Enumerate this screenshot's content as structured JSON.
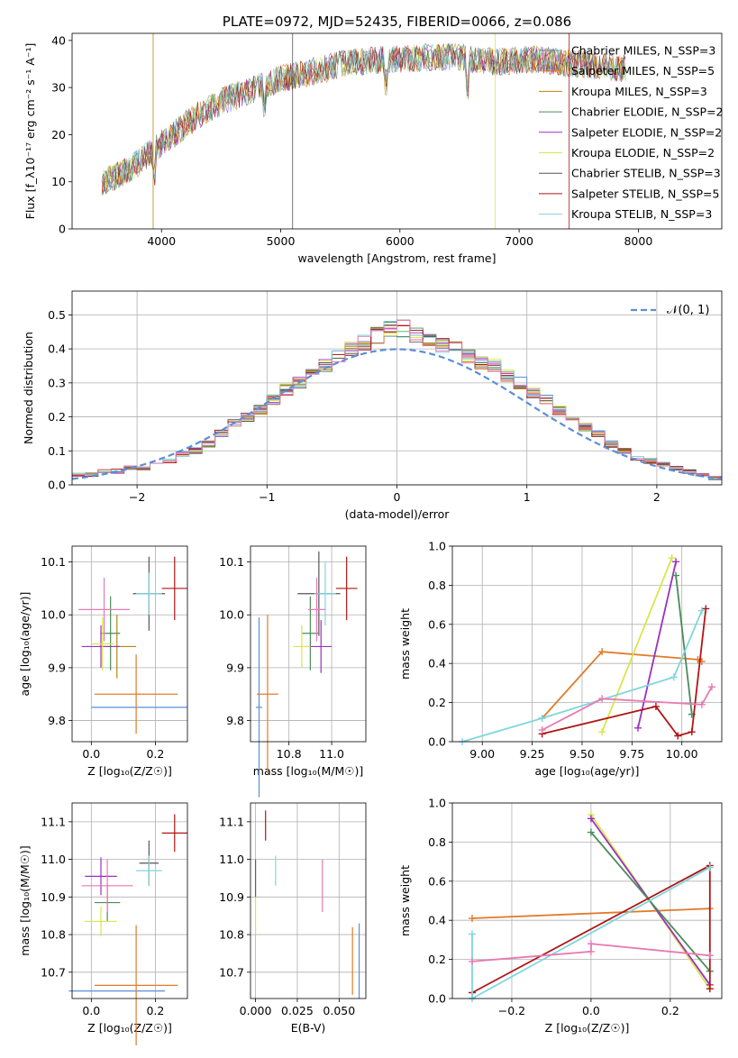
{
  "colors": {
    "Chabrier MILES": "#5b8fd6",
    "Salpeter MILES": "#e07b2a",
    "Kroupa MILES": "#b8860b",
    "Chabrier ELODIE": "#4c8c5a",
    "Salpeter ELODIE": "#9b30c0",
    "Kroupa ELODIE": "#d9e64a",
    "Chabrier STELIB": "#555555",
    "Salpeter STELIB": "#b01515",
    "Kroupa STELIB": "#7fd6dd",
    "pink": "#e87ab2",
    "gauss": "#5b8fd6"
  },
  "chart_data": [
    {
      "type": "line",
      "title": "PLATE=0972, MJD=52435, FIBERID=0066, z=0.086",
      "xlabel": "wavelength [Angstrom, rest frame]",
      "ylabel": "Flux [f_λ10⁻¹⁷ erg cm⁻² s⁻¹ A⁻¹]",
      "xlim": [
        3250,
        8700
      ],
      "ylim": [
        0,
        41.5
      ],
      "xticks": [
        "4000",
        "5000",
        "6000",
        "7000",
        "8000"
      ],
      "yticks": [
        "0",
        "10",
        "20",
        "30",
        "40"
      ],
      "legend_position": "right",
      "series": [
        {
          "name": "Chabrier MILES, N_SSP=3"
        },
        {
          "name": "Salpeter MILES, N_SSP=5"
        },
        {
          "name": "Kroupa MILES, N_SSP=3"
        },
        {
          "name": "Chabrier ELODIE, N_SSP=2"
        },
        {
          "name": "Salpeter ELODIE, N_SSP=2"
        },
        {
          "name": "Kroupa ELODIE, N_SSP=2"
        },
        {
          "name": "Chabrier STELIB, N_SSP=3"
        },
        {
          "name": "Salpeter STELIB, N_SSP=5"
        },
        {
          "name": "Kroupa STELIB, N_SSP=3"
        }
      ],
      "continuum": {
        "x": [
          3500,
          3700,
          3900,
          4100,
          4300,
          4500,
          4700,
          4900,
          5100,
          5300,
          5500,
          5700,
          5900,
          6100,
          6300,
          6500,
          6700,
          6900,
          7100,
          7300,
          7500,
          7700,
          7900
        ],
        "y": [
          10,
          12,
          16,
          20,
          24,
          27,
          29,
          31,
          32.5,
          33.5,
          35,
          35.5,
          36,
          36.2,
          36.5,
          36.5,
          35.5,
          35.5,
          36,
          35.5,
          35,
          34.5,
          34
        ]
      }
    },
    {
      "type": "step",
      "xlabel": "(data-model)/error",
      "ylabel": "Normed distribution",
      "xlim": [
        -2.5,
        2.5
      ],
      "ylim": [
        0,
        0.57
      ],
      "xticks": [
        "−2",
        "−1",
        "0",
        "1",
        "2"
      ],
      "yticks": [
        "0.0",
        "0.1",
        "0.2",
        "0.3",
        "0.4",
        "0.5"
      ],
      "legend": "𝒩(0, 1)",
      "bin_edges_from": -2.5,
      "bin_width": 0.1,
      "histogram_shape": [
        0.03,
        0.03,
        0.04,
        0.04,
        0.05,
        0.05,
        0.06,
        0.07,
        0.09,
        0.1,
        0.12,
        0.15,
        0.18,
        0.2,
        0.22,
        0.25,
        0.28,
        0.3,
        0.33,
        0.35,
        0.38,
        0.4,
        0.42,
        0.44,
        0.46,
        0.46,
        0.44,
        0.42,
        0.41,
        0.4,
        0.38,
        0.36,
        0.35,
        0.32,
        0.3,
        0.27,
        0.25,
        0.22,
        0.2,
        0.17,
        0.15,
        0.12,
        0.1,
        0.08,
        0.07,
        0.06,
        0.05,
        0.04,
        0.03,
        0.02
      ]
    },
    {
      "type": "errorbar",
      "xlabel": "Z [log₁₀(Z/Z☉)]",
      "ylabel": "age  [log₁₀(age/yr)]",
      "xlim": [
        -0.06,
        0.3
      ],
      "ylim": [
        9.76,
        10.13
      ],
      "xticks": [
        "0.0",
        "0.2"
      ],
      "yticks": [
        "9.8",
        "9.9",
        "10.0",
        "10.1"
      ],
      "points": [
        {
          "x": 0.15,
          "y": 9.825,
          "xerr": 0.15,
          "yerr": 0.0,
          "c": "Chabrier MILES"
        },
        {
          "x": 0.14,
          "y": 9.85,
          "xerr": 0.13,
          "yerr": 0.075,
          "c": "Salpeter MILES"
        },
        {
          "x": 0.08,
          "y": 9.94,
          "xerr": 0.06,
          "yerr": 0.06,
          "c": "Kroupa MILES"
        },
        {
          "x": 0.06,
          "y": 9.965,
          "xerr": 0.03,
          "yerr": 0.07,
          "c": "Chabrier ELODIE"
        },
        {
          "x": 0.03,
          "y": 9.94,
          "xerr": 0.06,
          "yerr": 0.04,
          "c": "Salpeter ELODIE"
        },
        {
          "x": 0.035,
          "y": 9.945,
          "xerr": 0.035,
          "yerr": 0.05,
          "c": "Kroupa ELODIE"
        },
        {
          "x": 0.18,
          "y": 10.04,
          "xerr": 0.05,
          "yerr": 0.07,
          "c": "Chabrier STELIB"
        },
        {
          "x": 0.26,
          "y": 10.05,
          "xerr": 0.04,
          "yerr": 0.06,
          "c": "Salpeter STELIB"
        },
        {
          "x": 0.18,
          "y": 10.04,
          "xerr": 0.04,
          "yerr": 0.04,
          "c": "Kroupa STELIB"
        },
        {
          "x": 0.04,
          "y": 10.01,
          "xerr": 0.08,
          "yerr": 0.06,
          "c": "pink"
        }
      ]
    },
    {
      "type": "errorbar",
      "xlabel": "mass [log₁₀(M/M☉)]",
      "xlim": [
        10.62,
        11.16
      ],
      "ylim": [
        9.76,
        10.13
      ],
      "xticks": [
        "10.8",
        "11.0"
      ],
      "yticks": [
        "9.8",
        "9.9",
        "10.0",
        "10.1"
      ],
      "points": [
        {
          "x": 10.66,
          "y": 9.825,
          "xerr": 0.015,
          "yerr": 0.17,
          "c": "Chabrier MILES"
        },
        {
          "x": 10.7,
          "y": 9.85,
          "xerr": 0.05,
          "yerr": 0.15,
          "c": "Salpeter MILES"
        },
        {
          "x": 10.94,
          "y": 10.04,
          "xerr": 0.1,
          "yerr": 0.08,
          "c": "Chabrier STELIB"
        },
        {
          "x": 11.07,
          "y": 10.05,
          "xerr": 0.05,
          "yerr": 0.06,
          "c": "Salpeter STELIB"
        },
        {
          "x": 10.97,
          "y": 10.04,
          "xerr": 0.05,
          "yerr": 0.06,
          "c": "Kroupa STELIB"
        },
        {
          "x": 10.9,
          "y": 9.965,
          "xerr": 0.04,
          "yerr": 0.07,
          "c": "Chabrier ELODIE"
        },
        {
          "x": 10.95,
          "y": 9.94,
          "xerr": 0.05,
          "yerr": 0.05,
          "c": "Salpeter ELODIE"
        },
        {
          "x": 10.86,
          "y": 9.94,
          "xerr": 0.04,
          "yerr": 0.04,
          "c": "Kroupa ELODIE"
        },
        {
          "x": 10.93,
          "y": 10.01,
          "xerr": 0.04,
          "yerr": 0.06,
          "c": "pink"
        }
      ]
    },
    {
      "type": "line",
      "xlabel": "age  [log₁₀(age/yr)]",
      "ylabel": "mass weight",
      "xlim": [
        8.85,
        10.2
      ],
      "ylim": [
        0,
        1
      ],
      "xticks": [
        "9.00",
        "9.25",
        "9.50",
        "9.75",
        "10.00"
      ],
      "yticks": [
        "0.0",
        "0.2",
        "0.4",
        "0.6",
        "0.8",
        "1.0"
      ],
      "series": [
        {
          "c": "Salpeter MILES",
          "x": [
            9.3,
            9.6,
            10.08,
            10.1
          ],
          "y": [
            0.12,
            0.46,
            0.42,
            0.41
          ]
        },
        {
          "c": "Kroupa ELODIE",
          "x": [
            9.6,
            9.95
          ],
          "y": [
            0.05,
            0.94
          ]
        },
        {
          "c": "Salpeter ELODIE",
          "x": [
            9.78,
            9.97
          ],
          "y": [
            0.07,
            0.92
          ]
        },
        {
          "c": "Chabrier ELODIE",
          "x": [
            9.97,
            10.05
          ],
          "y": [
            0.85,
            0.14
          ]
        },
        {
          "c": "Salpeter STELIB",
          "x": [
            9.3,
            9.87,
            9.98,
            10.05,
            10.12
          ],
          "y": [
            0.04,
            0.18,
            0.03,
            0.05,
            0.68
          ]
        },
        {
          "c": "Kroupa STELIB",
          "x": [
            8.9,
            9.3,
            9.96,
            10.1
          ],
          "y": [
            0.0,
            0.12,
            0.33,
            0.67
          ]
        },
        {
          "c": "pink",
          "x": [
            9.3,
            9.6,
            10.1,
            10.15
          ],
          "y": [
            0.06,
            0.22,
            0.19,
            0.28
          ]
        }
      ]
    },
    {
      "type": "errorbar",
      "xlabel": "Z [log₁₀(Z/Z☉)]",
      "ylabel": "mass [log₁₀(M/M☉)]",
      "xlim": [
        -0.06,
        0.3
      ],
      "ylim": [
        10.63,
        11.15
      ],
      "xticks": [
        "0.0",
        "0.2"
      ],
      "yticks": [
        "10.7",
        "10.8",
        "10.9",
        "11.0",
        "11.1"
      ],
      "points": [
        {
          "x": 0.08,
          "y": 10.65,
          "xerr": 0.15,
          "yerr": 0.0,
          "c": "Chabrier MILES"
        },
        {
          "x": 0.14,
          "y": 10.665,
          "xerr": 0.13,
          "yerr": 0.16,
          "c": "Salpeter MILES"
        },
        {
          "x": 0.05,
          "y": 10.885,
          "xerr": 0.04,
          "yerr": 0.05,
          "c": "Chabrier ELODIE"
        },
        {
          "x": 0.03,
          "y": 10.955,
          "xerr": 0.05,
          "yerr": 0.05,
          "c": "Salpeter ELODIE"
        },
        {
          "x": 0.03,
          "y": 10.835,
          "xerr": 0.05,
          "yerr": 0.04,
          "c": "Kroupa ELODIE"
        },
        {
          "x": 0.18,
          "y": 10.99,
          "xerr": 0.03,
          "yerr": 0.06,
          "c": "Chabrier STELIB"
        },
        {
          "x": 0.26,
          "y": 11.07,
          "xerr": 0.04,
          "yerr": 0.05,
          "c": "Salpeter STELIB"
        },
        {
          "x": 0.18,
          "y": 10.97,
          "xerr": 0.04,
          "yerr": 0.04,
          "c": "Kroupa STELIB"
        },
        {
          "x": 0.05,
          "y": 10.93,
          "xerr": 0.08,
          "yerr": 0.07,
          "c": "pink"
        }
      ]
    },
    {
      "type": "errorbar",
      "xlabel": "E(B-V)",
      "xlim": [
        -0.003,
        0.066
      ],
      "ylim": [
        10.63,
        11.15
      ],
      "xticks": [
        "0.000",
        "0.025",
        "0.050"
      ],
      "yticks": [
        "10.7",
        "10.8",
        "10.9",
        "11.0",
        "11.1"
      ],
      "points": [
        {
          "x": 0.0,
          "y": 10.9,
          "xerr": 0,
          "yerr": 0.1,
          "c": "Kroupa ELODIE"
        },
        {
          "x": 0.0,
          "y": 10.95,
          "xerr": 0,
          "yerr": 0.05,
          "c": "Salpeter ELODIE"
        },
        {
          "x": 0.006,
          "y": 11.09,
          "xerr": 0,
          "yerr": 0.04,
          "c": "Salpeter STELIB"
        },
        {
          "x": 0.012,
          "y": 10.97,
          "xerr": 0,
          "yerr": 0.04,
          "c": "Kroupa STELIB"
        },
        {
          "x": 0.04,
          "y": 10.93,
          "xerr": 0,
          "yerr": 0.07,
          "c": "pink"
        },
        {
          "x": 0.058,
          "y": 10.73,
          "xerr": 0,
          "yerr": 0.09,
          "c": "Salpeter MILES"
        },
        {
          "x": 0.062,
          "y": 10.73,
          "xerr": 0,
          "yerr": 0.1,
          "c": "Chabrier MILES"
        }
      ]
    },
    {
      "type": "line",
      "xlabel": "Z [log₁₀(Z/Z☉)]",
      "ylabel": "mass weight",
      "xlim": [
        -0.35,
        0.33
      ],
      "ylim": [
        0,
        1
      ],
      "xticks": [
        "−0.2",
        "0.0",
        "0.2"
      ],
      "yticks": [
        "0.0",
        "0.2",
        "0.4",
        "0.6",
        "0.8",
        "1.0"
      ],
      "series": [
        {
          "c": "Salpeter MILES",
          "x": [
            -0.3,
            0.3
          ],
          "y": [
            0.41,
            0.46
          ]
        },
        {
          "c": "Kroupa ELODIE",
          "x": [
            0.0,
            0.3
          ],
          "y": [
            0.94,
            0.05
          ]
        },
        {
          "c": "Salpeter ELODIE",
          "x": [
            0.0,
            0.3
          ],
          "y": [
            0.92,
            0.07
          ]
        },
        {
          "c": "Chabrier ELODIE",
          "x": [
            0.0,
            0.3
          ],
          "y": [
            0.85,
            0.14
          ]
        },
        {
          "c": "Salpeter STELIB",
          "x": [
            -0.3,
            0.3,
            0.3
          ],
          "y": [
            0.03,
            0.68,
            0.05
          ]
        },
        {
          "c": "Kroupa STELIB",
          "x": [
            -0.3,
            0.3
          ],
          "y": [
            0.0,
            0.67
          ]
        },
        {
          "c": "Kroupa STELIB",
          "x": [
            -0.3,
            -0.3
          ],
          "y": [
            0.0,
            0.33
          ]
        },
        {
          "c": "pink",
          "x": [
            -0.3,
            0.0,
            0.0,
            0.3
          ],
          "y": [
            0.19,
            0.24,
            0.28,
            0.22
          ]
        }
      ]
    }
  ]
}
